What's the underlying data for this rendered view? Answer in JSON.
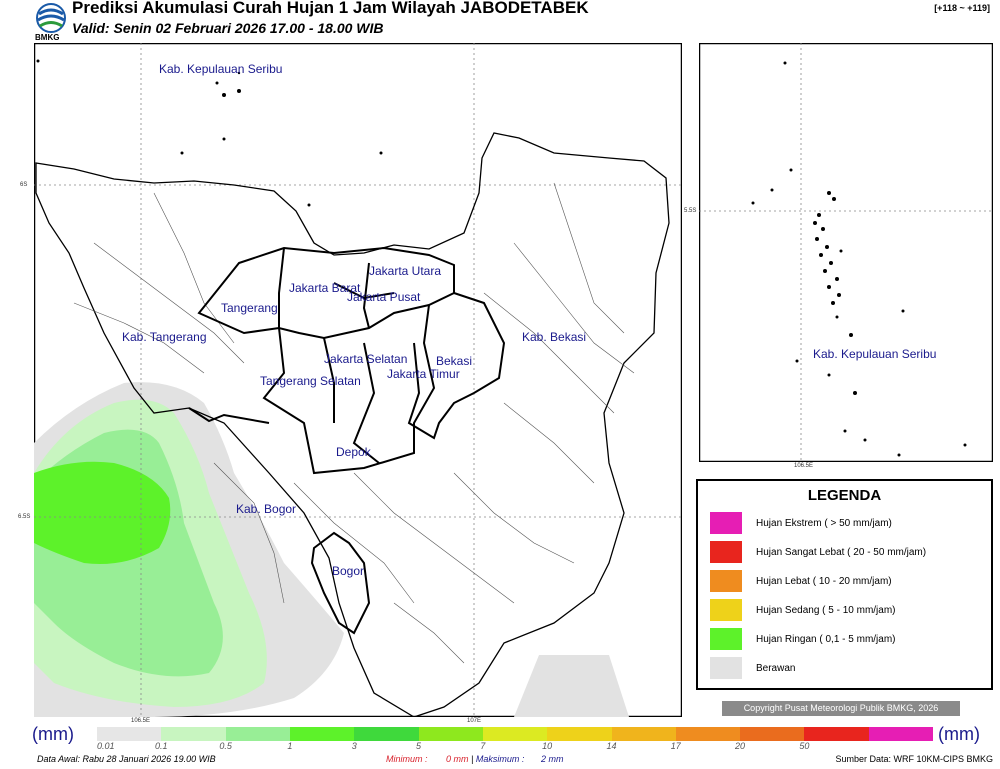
{
  "header": {
    "title": "Prediksi Akumulasi Curah Hujan 1 Jam Wilayah JABODETABEK",
    "valid": "Valid: Senin 02 Februari 2026 17.00 - 18.00 WIB",
    "logo_text": "BMKG",
    "range": "[+118 ~ +119]"
  },
  "map": {
    "regions": [
      "Kab. Kepulauan Seribu",
      "Jakarta Utara",
      "Jakarta Barat",
      "Jakarta Pusat",
      "Tangerang",
      "Kab. Tangerang",
      "Jakarta Selatan",
      "Jakarta Timur",
      "Bekasi",
      "Kab. Bekasi",
      "Tangerang Selatan",
      "Depok",
      "Kab. Bogor",
      "Bogor"
    ],
    "lat_ticks": [
      "6S",
      "6.5S"
    ],
    "lon_ticks": [
      "106.5E",
      "107E"
    ],
    "inset_label": "Kab. Kepulauan Seribu",
    "inset_lat_tick": "5.5S",
    "inset_lon_tick": "106.5E"
  },
  "legend": {
    "title": "LEGENDA",
    "items": [
      {
        "label": "Hujan Ekstrem ( > 50 mm/jam)",
        "color": "#e61eb4"
      },
      {
        "label": "Hujan Sangat Lebat ( 20 - 50 mm/jam)",
        "color": "#e8251e"
      },
      {
        "label": "Hujan Lebat ( 10 - 20 mm/jam)",
        "color": "#ef8c1f"
      },
      {
        "label": "Hujan Sedang ( 5 - 10 mm/jam)",
        "color": "#eed21a"
      },
      {
        "label": "Hujan Ringan ( 0,1 - 5 mm/jam)",
        "color": "#5df22a"
      },
      {
        "label": "Berawan",
        "color": "#e2e2e2"
      }
    ]
  },
  "copyright": "Copyright Pusat Meteorologi Publik BMKG, 2026",
  "scale": {
    "unit": "(mm)",
    "colors": [
      "#e6e6e6",
      "#c8f5c0",
      "#98ee96",
      "#5df22a",
      "#3fd93c",
      "#8ee81e",
      "#dcea22",
      "#eed21a",
      "#f0b41c",
      "#ef8c1f",
      "#ea6c1e",
      "#e8251e",
      "#e61eb4"
    ],
    "ticks": [
      "0.01",
      "0.1",
      "0.5",
      "1",
      "3",
      "5",
      "7",
      "10",
      "14",
      "17",
      "20",
      "50"
    ]
  },
  "footer": {
    "data_awal": "Data Awal: Rabu 28 Januari 2026 19.00 WIB",
    "minimum_label": "Minimum :",
    "minimum_value": "0 mm",
    "maximum_label": "Maksimum :",
    "maximum_value": "2 mm",
    "source": "Sumber Data: WRF 10KM-CIPS BMKG"
  }
}
